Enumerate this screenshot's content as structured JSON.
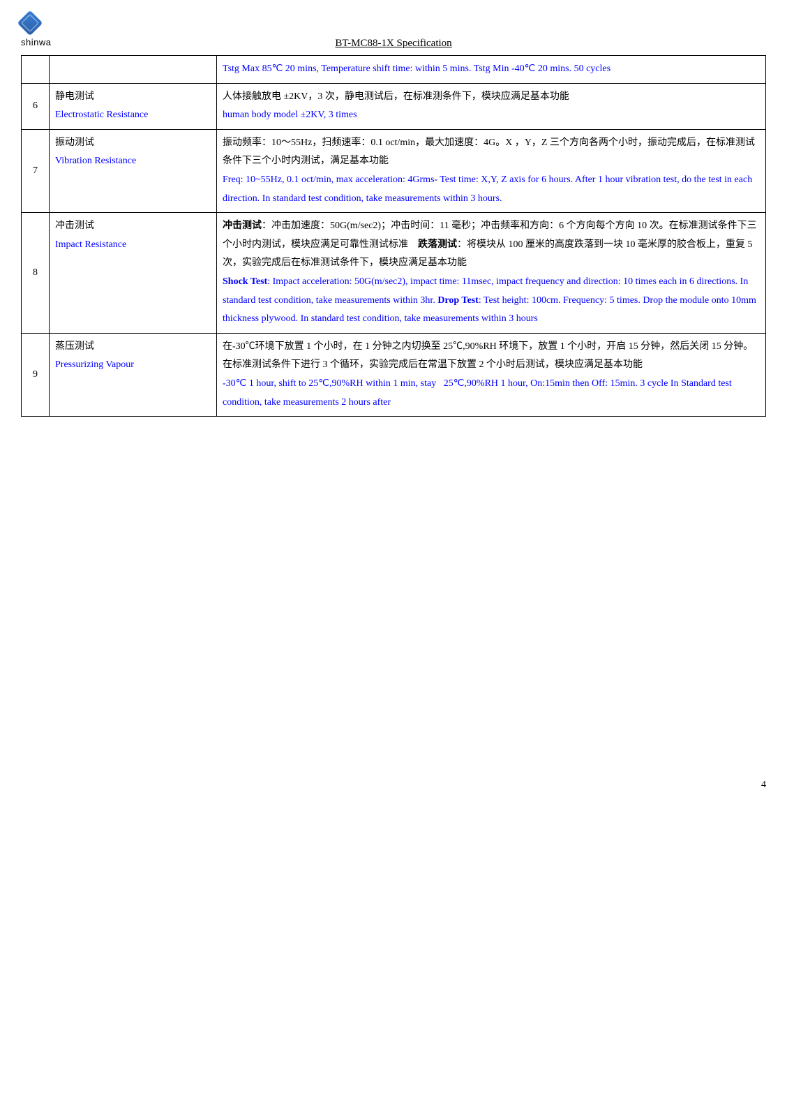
{
  "header": {
    "logo_text": "shinwa",
    "title": "BT-MC88-1X Specification"
  },
  "rows": [
    {
      "idx": "",
      "name_cn": "",
      "name_en": "",
      "desc": "<span class='blue'>Tstg Max 85℃ 20 mins, Temperature shift time: within 5 mins. Tstg Min -40℃ 20 mins. 50 cycles</span>"
    },
    {
      "idx": "6",
      "name_cn": "静电测试",
      "name_en": "Electrostatic Resistance",
      "desc": "人体接触放电 ±2KV，3 次，静电测试后，在标准测条件下，模块应满足基本功能<br><span class='blue'>human body model ±2KV, 3 times</span>"
    },
    {
      "idx": "7",
      "name_cn": "振动测试",
      "name_en": "Vibration Resistance",
      "desc": "振动频率：10～55Hz，扫频速率：0.1 oct/min，最大加速度：4G。X ，Y，Z 三个方向各两个小时，振动完成后，在标准测试条件下三个小时内测试，满足基本功能<br><span class='blue'>Freq: 10~55Hz, 0.1 oct/min, max acceleration: 4Grms- Test time: X,Y, Z axis for 6 hours. After 1 hour vibration test, do the test in each direction. In standard test condition, take measurements within 3 hours.</span>"
    },
    {
      "idx": "8",
      "name_cn": "冲击测试",
      "name_en": "Impact Resistance",
      "desc": "<span class='bold'>冲击测试</span>：冲击加速度：50G(m/sec2)；冲击时间：11 毫秒；冲击频率和方向：6 个方向每个方向 10 次。在标准测试条件下三个小时内测试，模块应满足可靠性测试标准&nbsp;&nbsp;&nbsp;&nbsp;<span class='bold'>跌落测试</span>：将模块从 100 厘米的高度跌落到一块 10 毫米厚的胶合板上，重复 5 次，实验完成后在标准测试条件下，模块应满足基本功能<br><span class='blue'><span class='bold'>Shock Test</span>: Impact acceleration: 50G(m/sec2), impact time: 11msec, impact frequency and direction: 10 times each in 6 directions. In standard test condition, take measurements within 3hr. <span class='bold'>Drop Test</span>: Test height: 100cm. Frequency: 5 times. Drop the module onto 10mm thickness plywood. In standard test condition, take measurements within 3 hours</span>"
    },
    {
      "idx": "9",
      "name_cn": "蒸压测试",
      "name_en": "Pressurizing Vapour",
      "desc": "在-30℃环境下放置 1 个小时，在 1 分钟之内切换至 25℃,90%RH 环境下，放置 1 个小时，开启 15 分钟，然后关闭 15 分钟。在标准测试条件下进行 3 个循环，实验完成后在常温下放置 2 个小时后测试，模块应满足基本功能<br><span class='blue'>-30℃ 1 hour, shift to 25℃,90%RH within 1 min, stay&nbsp;&nbsp;&nbsp;25℃,90%RH 1 hour, On:15min then Off: 15min. 3 cycle In Standard test condition, take measurements 2 hours after</span>"
    }
  ],
  "page_num": "4"
}
